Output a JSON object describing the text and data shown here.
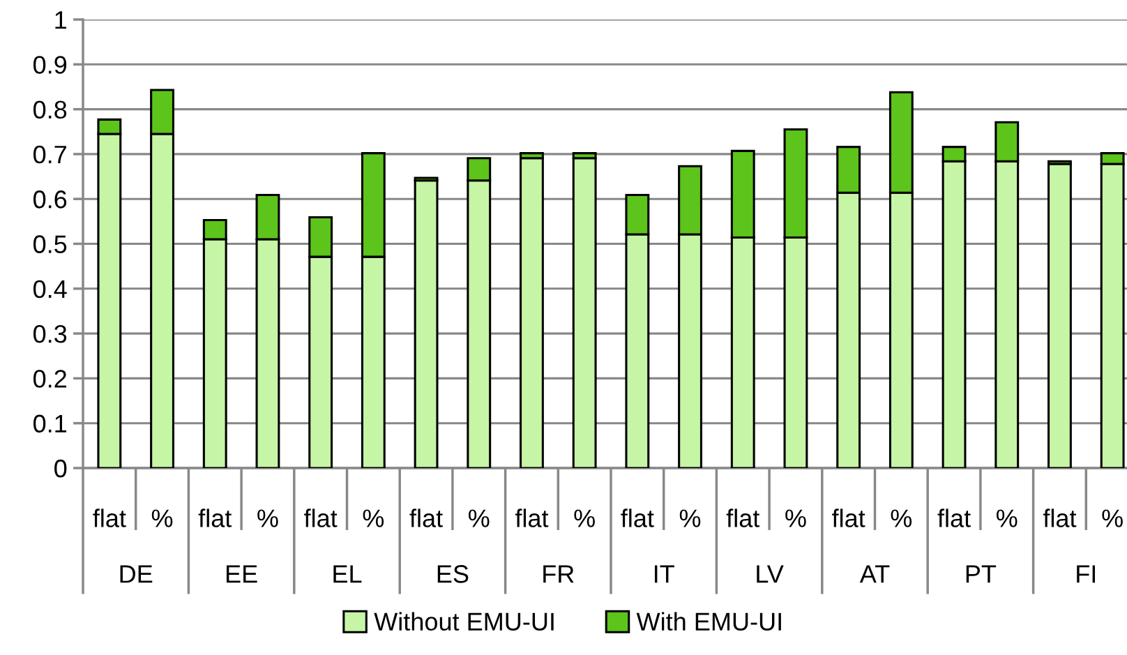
{
  "chart_data": {
    "type": "bar",
    "stacked": true,
    "categories": [
      "flat",
      "%",
      "flat",
      "%",
      "flat",
      "%",
      "flat",
      "%",
      "flat",
      "%",
      "flat",
      "%",
      "flat",
      "%",
      "flat",
      "%",
      "flat",
      "%",
      "flat",
      "%"
    ],
    "annotations": [
      "DE",
      "EE",
      "EL",
      "ES",
      "FR",
      "IT",
      "LV",
      "AT",
      "PT",
      "FI"
    ],
    "series": [
      {
        "name": "Without EMU-UI",
        "color": "#c6f5a6",
        "values": [
          0.745,
          0.745,
          0.51,
          0.51,
          0.471,
          0.471,
          0.641,
          0.641,
          0.691,
          0.691,
          0.521,
          0.521,
          0.514,
          0.514,
          0.614,
          0.614,
          0.684,
          0.684,
          0.678,
          0.678
        ]
      },
      {
        "name": "With EMU-UI",
        "color": "#5cc41a",
        "values": [
          0.032,
          0.098,
          0.043,
          0.099,
          0.088,
          0.231,
          0.006,
          0.05,
          0.011,
          0.011,
          0.088,
          0.152,
          0.193,
          0.241,
          0.102,
          0.224,
          0.032,
          0.087,
          0.006,
          0.024
        ]
      }
    ],
    "ylim": [
      0,
      1
    ],
    "yticks": [
      0,
      {
        "value": 0.1,
        "label": "0.1"
      },
      {
        "value": 0.2,
        "label": "0.2"
      },
      {
        "value": 0.3,
        "label": "0.3"
      },
      {
        "value": 0.4,
        "label": "0.4"
      },
      {
        "value": 0.5,
        "label": "0.5"
      },
      {
        "value": 0.6,
        "label": "0.6"
      },
      {
        "value": 0.7,
        "label": "0.7"
      },
      {
        "value": 0.8,
        "label": "0.8"
      },
      {
        "value": 0.9,
        "label": "0.9"
      },
      1
    ],
    "grid": "y",
    "legend": "bottom"
  }
}
